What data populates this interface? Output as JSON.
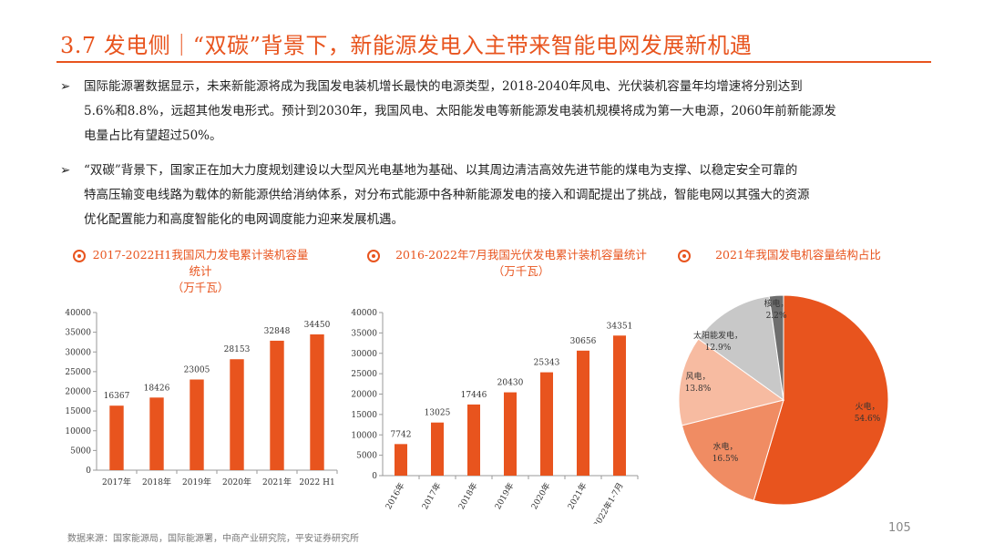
{
  "header": {
    "title": "3.7 发电侧｜“双碳”背景下，新能源发电入主带来智能电网发展新机遇"
  },
  "bullets": [
    {
      "lines": [
        "国际能源署数据显示，未来新能源将成为我国发电装机增长最快的电源类型，2018-2040年风电、光伏装机容量年均增速将分别达到",
        "5.6%和8.8%，远超其他发电形式。预计到2030年，我国风电、太阳能发电等新能源发电装机规模将成为第一大电源，2060年前新能源发",
        "电量占比有望超过50%。"
      ]
    },
    {
      "lines": [
        "“双碳”背景下，国家正在加大力度规划建设以大型风光电基地为基础、以其周边清洁高效先进节能的煤电为支撑、以稳定安全可靠的",
        "特高压输变电线路为载体的新能源供给消纳体系，对分布式能源中各种新能源发电的接入和调配提出了挑战，智能电网以其强大的资源",
        "优化配置能力和高度智能化的电网调度能力迎来发展机遇。"
      ]
    }
  ],
  "colors": {
    "accent": "#e8541e",
    "bar": "#e8541e"
  },
  "chart_data": [
    {
      "type": "bar",
      "title": "2017-2022H1我国风力发电累计装机容量统计",
      "subtitle": "（万千瓦）",
      "categories": [
        "2017年",
        "2018年",
        "2019年",
        "2020年",
        "2021年",
        "2022 H1"
      ],
      "values": [
        16367,
        18426,
        23005,
        28153,
        32848,
        34450
      ],
      "ylim": [
        0,
        40000
      ],
      "yticks": [
        0,
        5000,
        10000,
        15000,
        20000,
        25000,
        30000,
        35000,
        40000
      ],
      "grid": false,
      "tick_rotation": 0
    },
    {
      "type": "bar",
      "title": "2016-2022年7月我国光伏发电累计装机容量统计",
      "subtitle": "（万千瓦）",
      "categories": [
        "2016年",
        "2017年",
        "2018年",
        "2019年",
        "2020年",
        "2021年",
        "2022年1-7月"
      ],
      "values": [
        7742,
        13025,
        17446,
        20430,
        25343,
        30656,
        34351
      ],
      "ylim": [
        0,
        40000
      ],
      "yticks": [
        0,
        5000,
        10000,
        15000,
        20000,
        25000,
        30000,
        35000,
        40000
      ],
      "grid": false,
      "tick_rotation": -60
    },
    {
      "type": "pie",
      "title": "2021年我国发电机容量结构占比",
      "slices": [
        {
          "name": "火电",
          "value": 54.6,
          "label": "54.6%",
          "color": "#e8541e"
        },
        {
          "name": "水电",
          "value": 16.5,
          "label": "16.5%",
          "color": "#f08c63"
        },
        {
          "name": "风电",
          "value": 13.8,
          "label": "13.8%",
          "color": "#f7bba1"
        },
        {
          "name": "太阳能发电",
          "value": 12.9,
          "label": "12.9%",
          "color": "#c8c8c8"
        },
        {
          "name": "核电",
          "value": 2.2,
          "label": "2.2%",
          "color": "#6e6e6e"
        }
      ]
    }
  ],
  "footer": {
    "source": "数据来源：国家能源局，国际能源署，中商产业研究院，平安证券研究所",
    "page": "105"
  }
}
